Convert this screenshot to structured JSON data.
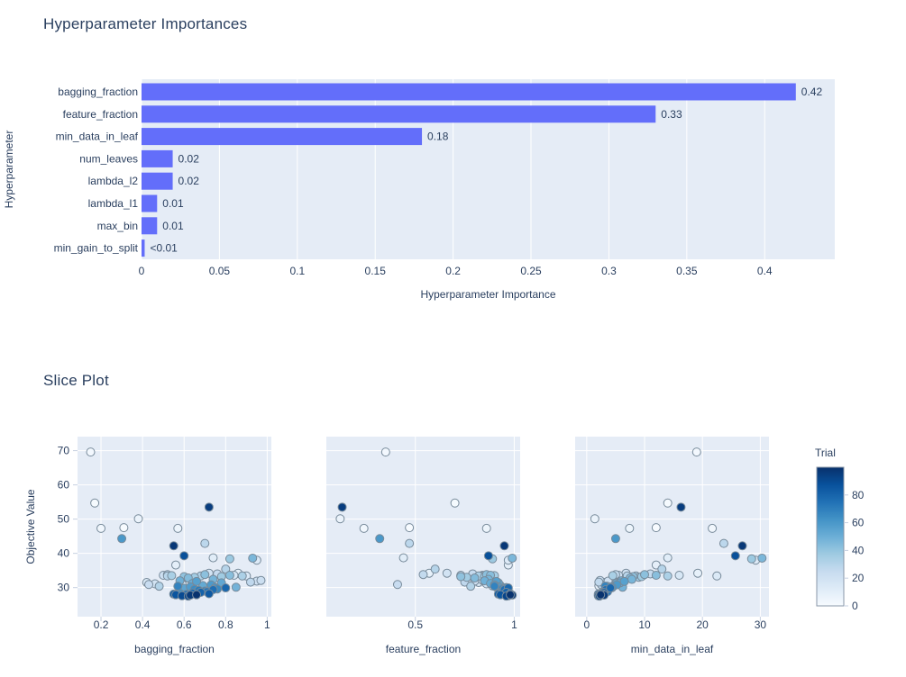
{
  "page": {
    "background": "#ffffff"
  },
  "colors": {
    "title_text": "#2a3f5f",
    "tick_text": "#2a3f5f",
    "plot_bg": "#e5ecf6",
    "grid": "#ffffff",
    "bar": "#636efa",
    "marker_edge": "#778a9a",
    "tick_mark": "#c6d0e0",
    "colorbar_border": "#8a97a8"
  },
  "chart_data": [
    {
      "type": "bar",
      "orientation": "horizontal",
      "title": "Hyperparameter Importances",
      "xlabel": "Hyperparameter Importance",
      "ylabel": "Hyperparameter",
      "categories": [
        "bagging_fraction",
        "feature_fraction",
        "min_data_in_leaf",
        "num_leaves",
        "lambda_l2",
        "lambda_l1",
        "max_bin",
        "min_gain_to_split"
      ],
      "values": [
        0.42,
        0.33,
        0.18,
        0.02,
        0.02,
        0.01,
        0.01,
        0.002
      ],
      "value_labels": [
        "0.42",
        "0.33",
        "0.18",
        "0.02",
        "0.02",
        "0.01",
        "0.01",
        "<0.01"
      ],
      "xticks": [
        0,
        0.05,
        0.1,
        0.15,
        0.2,
        0.25,
        0.3,
        0.35,
        0.4
      ],
      "xtick_labels": [
        "0",
        "0.05",
        "0.1",
        "0.15",
        "0.2",
        "0.25",
        "0.3",
        "0.35",
        "0.4"
      ],
      "xlim": [
        0,
        0.445
      ],
      "grid": "on",
      "legend": "none"
    },
    {
      "type": "scatter",
      "title": "Slice Plot",
      "ylabel": "Objective Value",
      "yticks": [
        30,
        40,
        50,
        60,
        70
      ],
      "ytick_labels": [
        "30",
        "40",
        "50",
        "60",
        "70"
      ],
      "ylim": [
        21.5,
        74.1
      ],
      "grid": "on",
      "subplots": [
        {
          "param": "bagging_fraction",
          "xlabel": "bagging_fraction",
          "xticks": [
            0.2,
            0.4,
            0.6,
            0.8,
            1
          ],
          "xtick_labels": [
            "0.2",
            "0.4",
            "0.6",
            "0.8",
            "1"
          ],
          "xlim": [
            0.087,
            1.02
          ]
        },
        {
          "param": "feature_fraction",
          "xlabel": "feature_fraction",
          "xticks": [
            0.5,
            1
          ],
          "xtick_labels": [
            "0.5",
            "1"
          ],
          "xlim": [
            0.05,
            1.03
          ]
        },
        {
          "param": "min_data_in_leaf",
          "xlabel": "min_data_in_leaf",
          "xticks": [
            0,
            10,
            20,
            30
          ],
          "xtick_labels": [
            "0",
            "10",
            "20",
            "30"
          ],
          "xlim": [
            -2,
            31.5
          ]
        }
      ],
      "colorbar": {
        "title": "Trial",
        "ticks": [
          0,
          20,
          40,
          60,
          80
        ],
        "tick_labels": [
          "0",
          "20",
          "40",
          "60",
          "80"
        ],
        "cmin": 0,
        "cmax": 100,
        "scale": [
          [
            0,
            "#f7fbff"
          ],
          [
            0.125,
            "#deebf7"
          ],
          [
            0.25,
            "#c6dbef"
          ],
          [
            0.375,
            "#9ecae1"
          ],
          [
            0.5,
            "#6baed6"
          ],
          [
            0.625,
            "#4292c6"
          ],
          [
            0.75,
            "#2171b5"
          ],
          [
            0.875,
            "#08519c"
          ],
          [
            1,
            "#08306b"
          ]
        ]
      },
      "trial_fields": [
        "number",
        "bagging_fraction",
        "feature_fraction",
        "min_data_in_leaf",
        "objective"
      ],
      "trials": [
        [
          2,
          0.15,
          0.35,
          19.0,
          69.6
        ],
        [
          1,
          0.17,
          0.7,
          14.0,
          54.7
        ],
        [
          3,
          0.2,
          0.24,
          21.7,
          47.3
        ],
        [
          0,
          0.31,
          0.47,
          12.0,
          47.5
        ],
        [
          60,
          0.3,
          0.32,
          5.0,
          44.3
        ],
        [
          6,
          0.38,
          0.12,
          1.4,
          50.1
        ],
        [
          95,
          0.72,
          0.13,
          16.3,
          53.5
        ],
        [
          97,
          0.55,
          0.95,
          26.9,
          42.2
        ],
        [
          28,
          0.7,
          0.47,
          23.7,
          42.9
        ],
        [
          5,
          0.57,
          0.86,
          7.4,
          47.3
        ],
        [
          9,
          0.56,
          0.97,
          12.0,
          36.6
        ],
        [
          11,
          0.74,
          0.44,
          14.0,
          38.7
        ],
        [
          38,
          0.82,
          0.89,
          28.5,
          38.4
        ],
        [
          46,
          0.93,
          0.99,
          30.3,
          38.6
        ],
        [
          13,
          0.95,
          0.97,
          29.2,
          38.0
        ],
        [
          88,
          0.6,
          0.87,
          25.7,
          39.3
        ],
        [
          8,
          0.86,
          0.57,
          19.2,
          34.2
        ],
        [
          15,
          0.42,
          0.82,
          3.0,
          31.5
        ],
        [
          24,
          0.43,
          0.41,
          2.5,
          30.9
        ],
        [
          18,
          0.46,
          0.86,
          4.0,
          31.1
        ],
        [
          31,
          0.48,
          0.78,
          3.5,
          30.4
        ],
        [
          21,
          0.5,
          0.84,
          5.5,
          33.6
        ],
        [
          26,
          0.52,
          0.54,
          5.0,
          33.8
        ],
        [
          29,
          0.52,
          0.88,
          7.0,
          33.4
        ],
        [
          34,
          0.54,
          0.9,
          4.5,
          33.5
        ],
        [
          83,
          0.55,
          0.92,
          2.0,
          28.1
        ],
        [
          86,
          0.56,
          0.93,
          2.2,
          27.9
        ],
        [
          68,
          0.57,
          0.9,
          3.2,
          30.4
        ],
        [
          49,
          0.58,
          0.85,
          6.0,
          32.0
        ],
        [
          63,
          0.58,
          0.96,
          2.8,
          28.3
        ],
        [
          90,
          0.59,
          0.97,
          2.0,
          27.6
        ],
        [
          41,
          0.6,
          0.73,
          8.0,
          33.2
        ],
        [
          54,
          0.6,
          0.95,
          3.5,
          29.8
        ],
        [
          75,
          0.61,
          0.98,
          2.5,
          28.0
        ],
        [
          92,
          0.62,
          0.96,
          2.2,
          27.5
        ],
        [
          44,
          0.62,
          0.8,
          7.5,
          32.8
        ],
        [
          58,
          0.63,
          0.92,
          4.2,
          30.2
        ],
        [
          96,
          0.63,
          0.99,
          3.0,
          27.8
        ],
        [
          51,
          0.64,
          0.88,
          5.0,
          31.2
        ],
        [
          78,
          0.64,
          0.97,
          2.6,
          28.4
        ],
        [
          36,
          0.65,
          0.76,
          9.0,
          33.0
        ],
        [
          65,
          0.65,
          0.94,
          3.8,
          29.5
        ],
        [
          99,
          0.66,
          0.98,
          2.4,
          27.9
        ],
        [
          56,
          0.66,
          0.91,
          6.5,
          31.8
        ],
        [
          71,
          0.67,
          0.95,
          3.4,
          29.2
        ],
        [
          32,
          0.68,
          0.83,
          8.5,
          33.4
        ],
        [
          81,
          0.68,
          0.96,
          2.9,
          28.6
        ],
        [
          52,
          0.69,
          0.93,
          4.8,
          30.6
        ],
        [
          69,
          0.7,
          0.97,
          3.1,
          29.0
        ],
        [
          42,
          0.7,
          0.86,
          10.0,
          33.8
        ],
        [
          73,
          0.71,
          0.94,
          3.6,
          28.8
        ],
        [
          19,
          0.72,
          0.66,
          6.8,
          34.2
        ],
        [
          84,
          0.72,
          0.98,
          2.7,
          28.2
        ],
        [
          59,
          0.73,
          0.9,
          5.2,
          30.8
        ],
        [
          76,
          0.74,
          0.95,
          3.3,
          29.4
        ],
        [
          47,
          0.74,
          0.87,
          7.8,
          32.4
        ],
        [
          61,
          0.75,
          0.96,
          4.4,
          30.0
        ],
        [
          25,
          0.76,
          0.79,
          11.0,
          34.0
        ],
        [
          66,
          0.76,
          0.94,
          3.9,
          29.6
        ],
        [
          37,
          0.78,
          0.85,
          9.5,
          33.2
        ],
        [
          53,
          0.78,
          0.92,
          5.8,
          31.4
        ],
        [
          30,
          0.8,
          0.6,
          13.0,
          35.4
        ],
        [
          79,
          0.8,
          0.97,
          4.1,
          29.9
        ],
        [
          43,
          0.82,
          0.88,
          12.0,
          33.6
        ],
        [
          16,
          0.84,
          0.73,
          16.0,
          33.6
        ],
        [
          48,
          0.85,
          0.91,
          6.2,
          30.1
        ],
        [
          33,
          0.88,
          0.82,
          14.0,
          33.4
        ],
        [
          14,
          0.9,
          0.73,
          22.5,
          33.4
        ],
        [
          27,
          0.92,
          0.75,
          2.1,
          31.6
        ],
        [
          20,
          0.95,
          0.8,
          3.7,
          31.9
        ],
        [
          22,
          0.97,
          0.84,
          2.3,
          32.1
        ],
        [
          4,
          0.66,
          0.92,
          3.1,
          30.3
        ],
        [
          7,
          0.61,
          0.89,
          2.1,
          30.5
        ],
        [
          10,
          0.63,
          0.94,
          2.9,
          29.7
        ],
        [
          12,
          0.59,
          0.91,
          3.3,
          31.0
        ]
      ]
    }
  ]
}
